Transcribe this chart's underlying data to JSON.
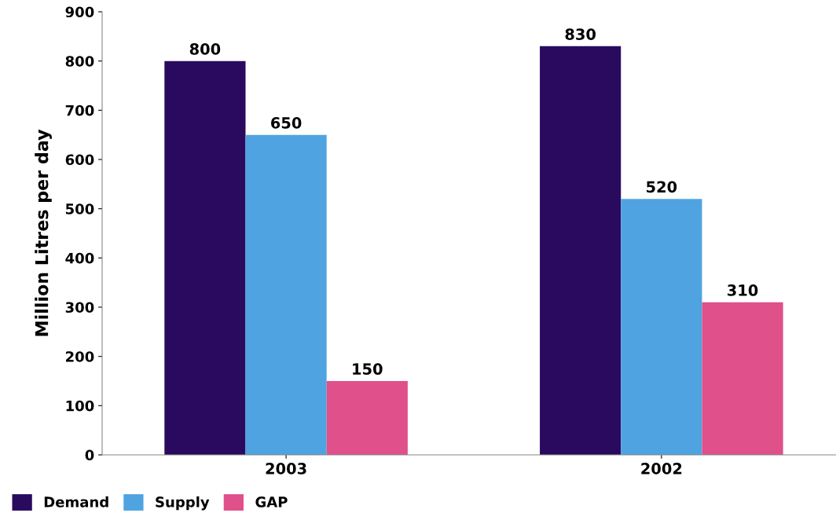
{
  "chart_data": {
    "type": "bar",
    "ylabel": "Million Litres per day",
    "categories": [
      "2003",
      "2002"
    ],
    "series": [
      {
        "name": "Demand",
        "color": "#2a0a5e",
        "values": [
          800,
          830
        ]
      },
      {
        "name": "Supply",
        "color": "#4fa3e0",
        "values": [
          650,
          520
        ]
      },
      {
        "name": "GAP",
        "color": "#e0508a",
        "values": [
          150,
          310
        ]
      }
    ],
    "ylim": [
      0,
      900
    ],
    "yticks": [
      0,
      100,
      200,
      300,
      400,
      500,
      600,
      700,
      800,
      900
    ],
    "grid": false,
    "legend": "bottom left",
    "data_labels": true
  }
}
